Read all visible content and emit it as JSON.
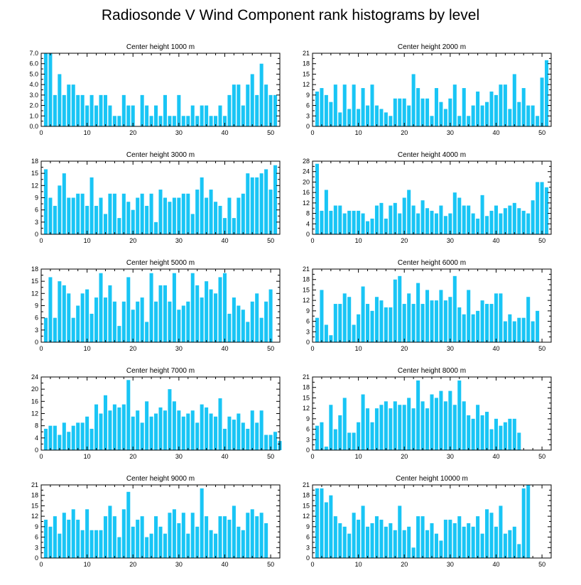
{
  "chart_data": {
    "title": "Radiosonde V Wind Component rank histograms by level",
    "panels": [
      {
        "type": "bar",
        "title": "Center height 1000 m",
        "xlim": [
          0,
          52
        ],
        "ylim": [
          0,
          7
        ],
        "xticks": [
          0,
          10,
          20,
          30,
          40,
          50
        ],
        "yticks": [
          "0.0",
          "1.0",
          "2.0",
          "3.0",
          "4.0",
          "5.0",
          "6.0",
          "7.0"
        ],
        "values": [
          7,
          7,
          3,
          5,
          3,
          4,
          4,
          3,
          3,
          2,
          3,
          2,
          3,
          3,
          2,
          1,
          1,
          3,
          2,
          2,
          0,
          3,
          2,
          1,
          2,
          1,
          3,
          1,
          1,
          3,
          1,
          1,
          2,
          1,
          2,
          2,
          1,
          1,
          2,
          1,
          3,
          4,
          4,
          2,
          4,
          5,
          3,
          6,
          4,
          3,
          3
        ]
      },
      {
        "type": "bar",
        "title": "Center height 2000 m",
        "xlim": [
          0,
          52
        ],
        "ylim": [
          0,
          21
        ],
        "xticks": [
          0,
          10,
          20,
          30,
          40,
          50
        ],
        "yticks": [
          "0",
          "3",
          "6",
          "9",
          "12",
          "15",
          "18",
          "21"
        ],
        "values": [
          10,
          11,
          9,
          7,
          12,
          4,
          12,
          5,
          12,
          5,
          11,
          6,
          12,
          6,
          5,
          4,
          3,
          8,
          8,
          8,
          6,
          15,
          11,
          8,
          8,
          3,
          11,
          7,
          5,
          8,
          12,
          3,
          11,
          3,
          6,
          10,
          6,
          7,
          10,
          9,
          12,
          12,
          5,
          15,
          7,
          11,
          6,
          6,
          3,
          14,
          19
        ]
      },
      {
        "type": "bar",
        "title": "Center height 3000 m",
        "xlim": [
          0,
          52
        ],
        "ylim": [
          0,
          18
        ],
        "xticks": [
          0,
          10,
          20,
          30,
          40,
          50
        ],
        "yticks": [
          "0",
          "3",
          "6",
          "9",
          "12",
          "15",
          "18"
        ],
        "values": [
          16,
          9,
          7,
          12,
          15,
          9,
          9,
          10,
          10,
          7,
          14,
          7,
          9,
          5,
          10,
          10,
          4,
          10,
          8,
          6,
          9,
          10,
          7,
          10,
          3,
          11,
          9,
          8,
          9,
          9,
          10,
          10,
          5,
          11,
          14,
          9,
          11,
          8,
          7,
          4,
          9,
          4,
          9,
          10,
          15,
          14,
          14,
          15,
          16,
          11,
          17
        ]
      },
      {
        "type": "bar",
        "title": "Center height 4000 m",
        "xlim": [
          0,
          52
        ],
        "ylim": [
          0,
          28
        ],
        "xticks": [
          0,
          10,
          20,
          30,
          40,
          50
        ],
        "yticks": [
          "0",
          "4",
          "8",
          "12",
          "16",
          "20",
          "24",
          "28"
        ],
        "values": [
          27,
          9,
          17,
          9,
          11,
          11,
          8,
          9,
          9,
          9,
          8,
          5,
          6,
          11,
          12,
          6,
          11,
          12,
          8,
          14,
          17,
          11,
          8,
          13,
          10,
          9,
          8,
          11,
          7,
          8,
          16,
          14,
          11,
          11,
          8,
          6,
          15,
          7,
          9,
          11,
          8,
          10,
          11,
          12,
          10,
          9,
          8,
          13,
          20,
          20,
          18
        ]
      },
      {
        "type": "bar",
        "title": "Center height 5000 m",
        "xlim": [
          0,
          52
        ],
        "ylim": [
          0,
          18
        ],
        "xticks": [
          0,
          10,
          20,
          30,
          40,
          50
        ],
        "yticks": [
          "0",
          "3",
          "6",
          "9",
          "12",
          "15",
          "18"
        ],
        "values": [
          6,
          16,
          6,
          15,
          14,
          12,
          6,
          9,
          12,
          13,
          7,
          11,
          17,
          11,
          14,
          10,
          4,
          10,
          16,
          8,
          10,
          11,
          5,
          17,
          10,
          14,
          14,
          10,
          17,
          8,
          9,
          10,
          17,
          14,
          11,
          15,
          13,
          12,
          16,
          17,
          7,
          11,
          9,
          8,
          5,
          10,
          12,
          6,
          10,
          13
        ]
      },
      {
        "type": "bar",
        "title": "Center height 6000 m",
        "xlim": [
          0,
          52
        ],
        "ylim": [
          0,
          21
        ],
        "xticks": [
          0,
          10,
          20,
          30,
          40,
          50
        ],
        "yticks": [
          "0",
          "3",
          "6",
          "9",
          "12",
          "15",
          "18",
          "21"
        ],
        "values": [
          7,
          15,
          5,
          2,
          11,
          11,
          14,
          13,
          5,
          8,
          16,
          11,
          9,
          13,
          12,
          10,
          10,
          18,
          19,
          11,
          14,
          11,
          17,
          11,
          15,
          12,
          12,
          15,
          12,
          13,
          19,
          10,
          8,
          15,
          8,
          9,
          12,
          11,
          11,
          14,
          14,
          6,
          8,
          6,
          7,
          7,
          13,
          6,
          9
        ]
      },
      {
        "type": "bar",
        "title": "Center height 7000 m",
        "xlim": [
          0,
          52
        ],
        "ylim": [
          0,
          24
        ],
        "xticks": [
          0,
          10,
          20,
          30,
          40,
          50
        ],
        "yticks": [
          "0",
          "4",
          "8",
          "12",
          "16",
          "20",
          "24"
        ],
        "values": [
          7,
          8,
          8,
          5,
          9,
          6,
          8,
          9,
          9,
          11,
          7,
          15,
          12,
          18,
          13,
          15,
          14,
          15,
          23,
          11,
          13,
          9,
          16,
          11,
          12,
          14,
          13,
          20,
          16,
          13,
          11,
          12,
          13,
          9,
          15,
          14,
          12,
          11,
          17,
          7,
          11,
          10,
          12,
          9,
          7,
          13,
          9,
          13,
          5,
          5,
          6,
          3
        ]
      },
      {
        "type": "bar",
        "title": "Center height 8000 m",
        "xlim": [
          0,
          52
        ],
        "ylim": [
          0,
          21
        ],
        "xticks": [
          0,
          10,
          20,
          30,
          40,
          50
        ],
        "yticks": [
          "0",
          "3",
          "6",
          "9",
          "12",
          "15",
          "18",
          "21"
        ],
        "values": [
          7,
          8,
          1,
          13,
          6,
          10,
          15,
          5,
          5,
          8,
          16,
          12,
          8,
          12,
          13,
          14,
          12,
          14,
          13,
          13,
          15,
          12,
          20,
          14,
          12,
          16,
          15,
          17,
          14,
          17,
          13,
          20,
          14,
          10,
          9,
          13,
          10,
          11,
          6,
          9,
          7,
          8,
          9,
          9,
          5
        ]
      },
      {
        "type": "bar",
        "title": "Center height 9000 m",
        "xlim": [
          0,
          52
        ],
        "ylim": [
          0,
          21
        ],
        "xticks": [
          0,
          10,
          20,
          30,
          40,
          50
        ],
        "yticks": [
          "0",
          "3",
          "6",
          "9",
          "12",
          "15",
          "18",
          "21"
        ],
        "values": [
          11,
          9,
          12,
          7,
          13,
          11,
          14,
          11,
          8,
          14,
          8,
          8,
          8,
          12,
          15,
          12,
          6,
          14,
          19,
          9,
          11,
          12,
          6,
          7,
          12,
          9,
          7,
          13,
          14,
          10,
          13,
          7,
          13,
          9,
          20,
          12,
          8,
          7,
          12,
          12,
          11,
          15,
          9,
          8,
          13,
          14,
          12,
          13,
          10
        ]
      },
      {
        "type": "bar",
        "title": "Center height 10000 m",
        "xlim": [
          0,
          52
        ],
        "ylim": [
          0,
          21
        ],
        "xticks": [
          0,
          10,
          20,
          30,
          40,
          50
        ],
        "yticks": [
          "0",
          "3",
          "6",
          "9",
          "12",
          "15",
          "18",
          "21"
        ],
        "values": [
          20,
          20,
          16,
          18,
          12,
          10,
          9,
          7,
          13,
          11,
          15,
          9,
          10,
          12,
          11,
          9,
          10,
          8,
          15,
          8,
          9,
          3,
          12,
          12,
          8,
          10,
          7,
          5,
          11,
          11,
          10,
          12,
          9,
          10,
          9,
          12,
          7,
          14,
          13,
          9,
          15,
          7,
          8,
          9,
          4,
          20,
          21
        ]
      }
    ]
  }
}
